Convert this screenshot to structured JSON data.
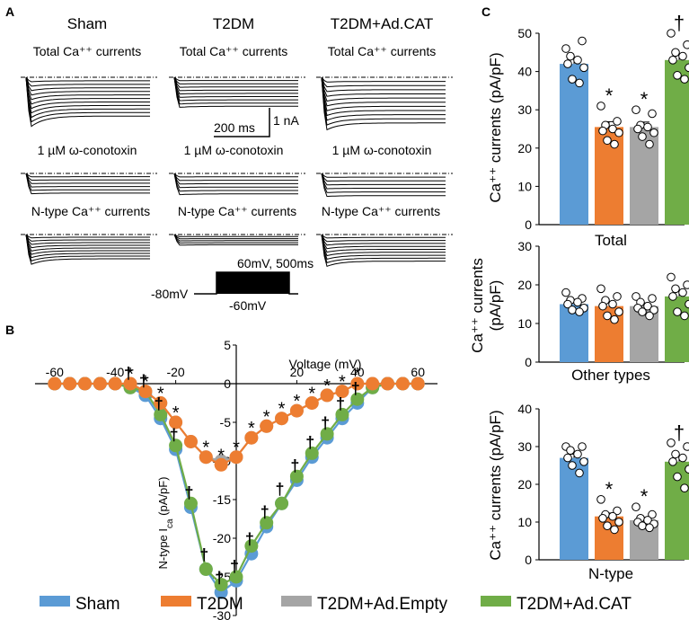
{
  "panel_a": {
    "letter": "A",
    "columns": [
      "Sham",
      "T2DM",
      "T2DM+Ad.CAT"
    ],
    "row_labels": [
      "Total Ca⁺⁺ currents",
      "1 µM ω-conotoxin",
      "N-type Ca⁺⁺ currents"
    ],
    "scale_time": "200 ms",
    "scale_current": "1 nA",
    "protocol_step": "60mV, 500ms",
    "protocol_hold": "-80mV",
    "protocol_start": "-60mV"
  },
  "chart_data": [
    {
      "panel": "B",
      "type": "line",
      "title": "",
      "xlabel": "Voltage (mV)",
      "ylabel": "N-type I_ca (pA/pF)",
      "xlim": [
        -65,
        65
      ],
      "ylim": [
        -30,
        5
      ],
      "xticks": [
        -60,
        -40,
        -20,
        20,
        40,
        60
      ],
      "yticks": [
        5,
        0,
        -5,
        -10,
        -15,
        -20,
        -25,
        -30
      ],
      "x": [
        -60,
        -55,
        -50,
        -45,
        -40,
        -35,
        -30,
        -25,
        -20,
        -15,
        -10,
        -5,
        0,
        5,
        10,
        15,
        20,
        25,
        30,
        35,
        40,
        45,
        50,
        55,
        60
      ],
      "series": [
        {
          "name": "Sham",
          "color": "#5b9bd5",
          "values": [
            0,
            0,
            0,
            0,
            0,
            -0.5,
            -1.5,
            -4.5,
            -8.5,
            -16,
            -24,
            -27,
            -25.5,
            -22,
            -18.5,
            -15.5,
            -12.5,
            -9.5,
            -7,
            -4.5,
            -2.5,
            -0.5,
            0,
            0,
            0
          ]
        },
        {
          "name": "T2DM",
          "color": "#ed7d31",
          "values": [
            0,
            0,
            0,
            0,
            0,
            0,
            -1,
            -2.5,
            -5,
            -7.5,
            -9.5,
            -10.5,
            -9.5,
            -7,
            -5.5,
            -4.5,
            -3.5,
            -2.5,
            -1.5,
            -1,
            0,
            0,
            0,
            0,
            0
          ]
        },
        {
          "name": "T2DM+Ad.Empty",
          "color": "#a5a5a5",
          "values": [
            0,
            0,
            0,
            0,
            0,
            0,
            -1,
            -2.5,
            -5,
            -7.5,
            -9.5,
            -10,
            -9.5,
            -7,
            -5.5,
            -4.5,
            -3.5,
            -2.5,
            -1.5,
            -1,
            0,
            0,
            0,
            0,
            0
          ]
        },
        {
          "name": "T2DM+Ad.CAT",
          "color": "#70ad47",
          "values": [
            0,
            0,
            0,
            0,
            0,
            -0.5,
            -1,
            -4,
            -8,
            -15.5,
            -24,
            -26,
            -25,
            -21,
            -18,
            -15.5,
            -12,
            -9,
            -6.5,
            -4,
            -2,
            -0.5,
            0,
            0,
            0
          ]
        }
      ],
      "star_marks": [
        -35,
        -30,
        -25,
        -20,
        -10,
        -5,
        0,
        5,
        10,
        15,
        20,
        25,
        30,
        35,
        40
      ],
      "dagger_marks": [
        -35,
        -30,
        -25,
        -20,
        -15,
        -10,
        -5,
        0,
        5,
        10,
        15,
        20,
        25,
        30,
        35,
        40
      ],
      "star_symbol": "*",
      "dagger_symbol": "†"
    },
    {
      "panel": "C",
      "type": "bar",
      "title": "Total",
      "ylabel": "Ca⁺⁺ currents (pA/pF)",
      "ylim": [
        0,
        50
      ],
      "yticks": [
        0,
        10,
        20,
        30,
        40,
        50
      ],
      "categories": [
        "Sham",
        "T2DM",
        "T2DM+Ad.Empty",
        "T2DM+Ad.CAT"
      ],
      "values": [
        42,
        25.5,
        25.5,
        43
      ],
      "errors": [
        1.3,
        1.4,
        1.3,
        1.3
      ],
      "points": [
        [
          46,
          48,
          44,
          43,
          42,
          41,
          38,
          37
        ],
        [
          31,
          27,
          26,
          25,
          24.5,
          24,
          22,
          21
        ],
        [
          30,
          29,
          26,
          25.5,
          25,
          24,
          23,
          21
        ],
        [
          50,
          47,
          45,
          44,
          43,
          41,
          39,
          38
        ]
      ],
      "marks": [
        "",
        "*",
        "*",
        "†"
      ]
    },
    {
      "panel": "C",
      "type": "bar",
      "title": "Other types",
      "ylabel": "Ca⁺⁺ currents (pA/pF)",
      "ylim": [
        0,
        30
      ],
      "yticks": [
        0,
        10,
        20,
        30
      ],
      "categories": [
        "Sham",
        "T2DM",
        "T2DM+Ad.Empty",
        "T2DM+Ad.CAT"
      ],
      "values": [
        15,
        14.5,
        14.5,
        17
      ],
      "errors": [
        0.8,
        1.1,
        0.8,
        1.5
      ],
      "points": [
        [
          18,
          16.5,
          16,
          15.5,
          15,
          14,
          13.5,
          13
        ],
        [
          19,
          17,
          16,
          15,
          14.5,
          13,
          12,
          11
        ],
        [
          17,
          16.5,
          15.5,
          14.5,
          14,
          13.5,
          13,
          12
        ],
        [
          22,
          20,
          19,
          18,
          17,
          15,
          13,
          12
        ]
      ],
      "marks": [
        "",
        "",
        "",
        ""
      ]
    },
    {
      "panel": "C",
      "type": "bar",
      "title": "N-type",
      "ylabel": "Ca⁺⁺ currents (pA/pF)",
      "ylim": [
        0,
        40
      ],
      "yticks": [
        0,
        10,
        20,
        30,
        40
      ],
      "categories": [
        "Sham",
        "T2DM",
        "T2DM+Ad.Empty",
        "T2DM+Ad.CAT"
      ],
      "values": [
        27,
        11.5,
        10.5,
        26
      ],
      "errors": [
        1.0,
        0.9,
        0.7,
        1.6
      ],
      "points": [
        [
          30,
          30,
          29,
          28,
          27,
          26,
          25,
          23
        ],
        [
          16,
          13,
          12,
          11.5,
          11,
          10,
          9,
          8
        ],
        [
          14,
          12,
          11,
          10.5,
          10,
          9.5,
          9,
          8.5
        ],
        [
          31,
          30,
          28,
          27,
          26,
          24,
          22,
          19
        ]
      ],
      "marks": [
        "",
        "*",
        "*",
        "†"
      ]
    }
  ],
  "legend": {
    "entries": [
      {
        "name": "Sham",
        "color": "#5b9bd5"
      },
      {
        "name": "T2DM",
        "color": "#ed7d31"
      },
      {
        "name": "T2DM+Ad.Empty",
        "color": "#a5a5a5"
      },
      {
        "name": "T2DM+Ad.CAT",
        "color": "#70ad47"
      }
    ]
  },
  "letters": {
    "b": "B",
    "c": "C"
  }
}
